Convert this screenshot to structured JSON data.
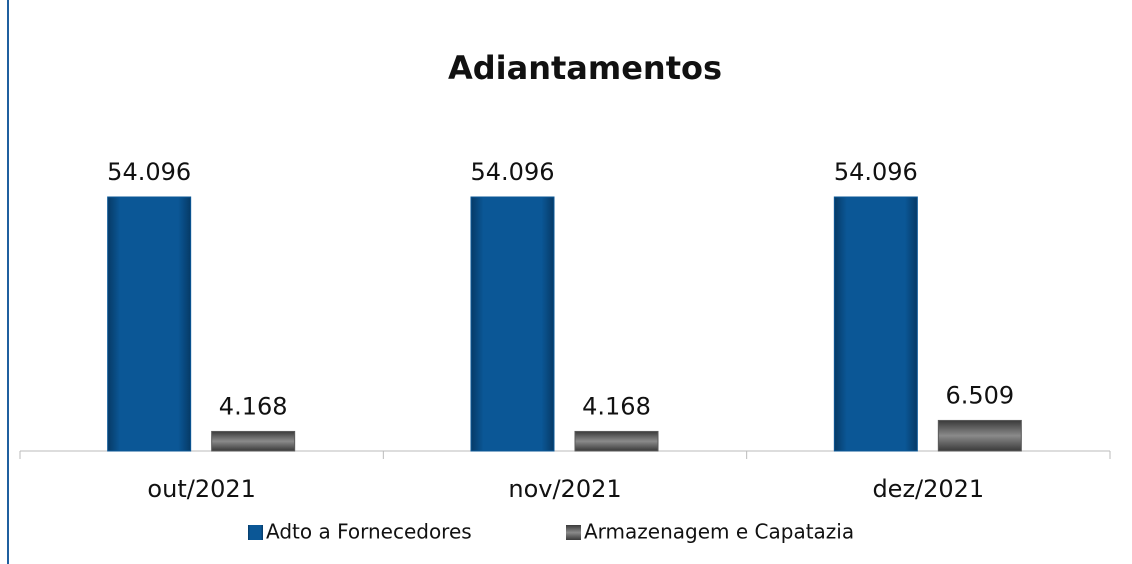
{
  "chart_data": {
    "type": "bar",
    "title": "Adiantamentos",
    "categories": [
      "out/2021",
      "nov/2021",
      "dez/2021"
    ],
    "series": [
      {
        "name": "Adto a Fornecedores",
        "color": "#0b5796",
        "values": [
          54096,
          54096,
          54096
        ],
        "value_labels": [
          "54.096",
          "54.096",
          "54.096"
        ]
      },
      {
        "name": "Armazenagem e Capatazia",
        "color": "#5a5a5a",
        "values": [
          4168,
          4168,
          6509
        ],
        "value_labels": [
          "4.168",
          "4.168",
          "6.509"
        ]
      }
    ]
  }
}
